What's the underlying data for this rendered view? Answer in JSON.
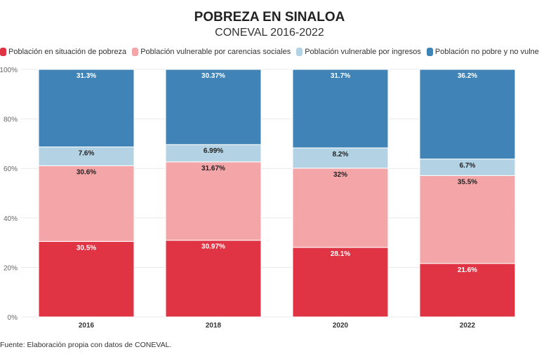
{
  "chart_data": {
    "type": "bar",
    "stacked": true,
    "title": "POBREZA EN SINALOA",
    "subtitle": "CONEVAL 2016-2022",
    "categories": [
      "2016",
      "2018",
      "2020",
      "2022"
    ],
    "series": [
      {
        "name": "Población en situación de pobreza",
        "color": "#e03444",
        "label_color": "#ffffff",
        "values": [
          30.5,
          30.97,
          28.1,
          21.6
        ],
        "labels": [
          "30.5%",
          "30.97%",
          "28.1%",
          "21.6%"
        ]
      },
      {
        "name": "Población vulnerable por carencias sociales",
        "color": "#f4a5a8",
        "label_color": "#222222",
        "values": [
          30.6,
          31.67,
          32,
          35.5
        ],
        "labels": [
          "30.6%",
          "31.67%",
          "32%",
          "35.5%"
        ]
      },
      {
        "name": "Población vulnerable por ingresos",
        "color": "#b3d3e4",
        "label_color": "#222222",
        "values": [
          7.6,
          6.99,
          8.2,
          6.7
        ],
        "labels": [
          "7.6%",
          "6.99%",
          "8.2%",
          "6.7%"
        ]
      },
      {
        "name": "Población no pobre y no vulnerable",
        "color": "#3f83b7",
        "label_color": "#ffffff",
        "values": [
          31.3,
          30.37,
          31.7,
          36.2
        ],
        "labels": [
          "31.3%",
          "30.37%",
          "31.7%",
          "36.2%"
        ]
      }
    ],
    "ylim": [
      0,
      100
    ],
    "yticks": [
      "0%",
      "20%",
      "40%",
      "60%",
      "80%",
      "100%"
    ],
    "grid": true,
    "legend": "top-left"
  },
  "source": "Fuente: Elaboración propia con datos de CONEVAL."
}
